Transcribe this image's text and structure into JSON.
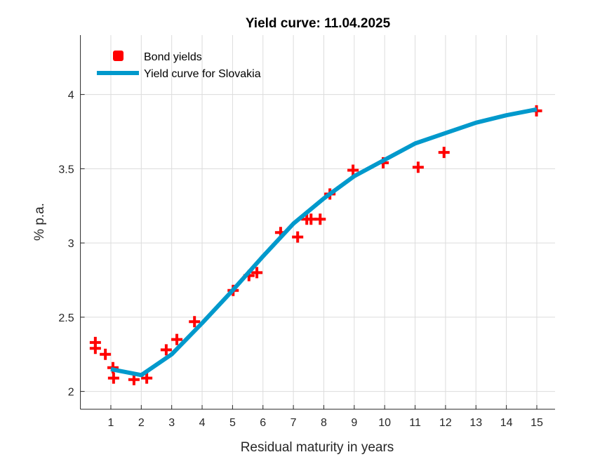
{
  "chart_data": {
    "type": "line",
    "title": "Yield curve: 11.04.2025",
    "xlabel": "Residual maturity in years",
    "ylabel": "% p.a.",
    "xlim": [
      0,
      15.6
    ],
    "ylim": [
      1.88,
      4.4
    ],
    "xticks": [
      1,
      2,
      3,
      4,
      5,
      6,
      7,
      8,
      9,
      10,
      11,
      12,
      13,
      14,
      15
    ],
    "yticks": [
      2,
      2.5,
      3,
      3.5,
      4
    ],
    "ytick_labels": [
      "2",
      "2.5",
      "3",
      "3.5",
      "4"
    ],
    "grid": true,
    "legend_position": "top-left",
    "series": [
      {
        "name": "Bond yields",
        "type": "scatter",
        "marker": "plus",
        "color": "#ff0000",
        "x": [
          0.49,
          0.49,
          0.82,
          1.07,
          1.09,
          1.76,
          2.18,
          2.82,
          3.17,
          3.75,
          5.02,
          5.54,
          5.8,
          6.58,
          7.14,
          7.44,
          7.58,
          7.88,
          8.2,
          8.96,
          9.95,
          11.1,
          11.95,
          14.99
        ],
        "y": [
          2.33,
          2.29,
          2.25,
          2.16,
          2.09,
          2.08,
          2.09,
          2.28,
          2.35,
          2.47,
          2.68,
          2.78,
          2.8,
          3.07,
          3.04,
          3.16,
          3.16,
          3.16,
          3.33,
          3.49,
          3.54,
          3.51,
          3.61,
          3.89
        ]
      },
      {
        "name": "Yield curve for Slovakia",
        "type": "line",
        "color": "#0099cc",
        "x": [
          1,
          2,
          3,
          4,
          5,
          6,
          7,
          8,
          9,
          10,
          11,
          12,
          13,
          14,
          15
        ],
        "y": [
          2.15,
          2.11,
          2.25,
          2.46,
          2.68,
          2.91,
          3.13,
          3.3,
          3.45,
          3.56,
          3.67,
          3.74,
          3.81,
          3.86,
          3.9
        ]
      }
    ]
  }
}
